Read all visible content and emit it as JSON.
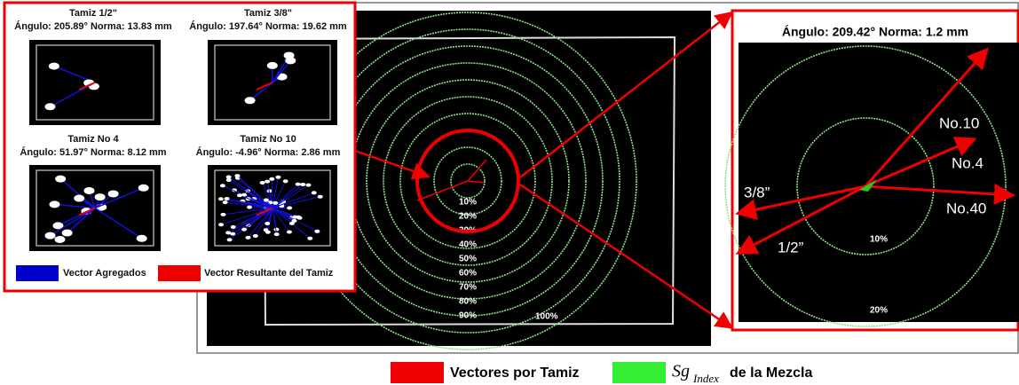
{
  "left_panel": {
    "plots": [
      {
        "title": "Tamiz 1/2\"",
        "caption": "Ángulo: 205.89° Norma: 13.83 mm"
      },
      {
        "title": "Tamiz 3/8\"",
        "caption": "Ángulo: 197.64° Norma: 19.62 mm"
      },
      {
        "title": "Tamiz No 4",
        "caption": "Ángulo: 51.97° Norma: 8.12 mm"
      },
      {
        "title": "Tamiz No 10",
        "caption": "Ángulo: -4.96° Norma: 2.86 mm"
      }
    ],
    "legend": [
      "Vector Agregados",
      "Vector Resultante del Tamiz"
    ]
  },
  "center_panel": {
    "ring_labels": [
      "10%",
      "20%",
      "30%",
      "40%",
      "50%",
      "60%",
      "70%",
      "80%",
      "90%"
    ],
    "outer_label": "100%"
  },
  "zoom_panel": {
    "title": "Ángulo: 209.42° Norma: 1.2 mm",
    "vector_labels": [
      "No.10",
      "No.4",
      "No.40",
      "3/8”",
      "1/2”"
    ],
    "ring_labels": [
      "10%",
      "20%"
    ]
  },
  "legend": {
    "vectors": "Vectores por Tamiz",
    "index_symbol": "Sg",
    "index_subscript": "Index",
    "index_text": "de la Mezcla"
  }
}
